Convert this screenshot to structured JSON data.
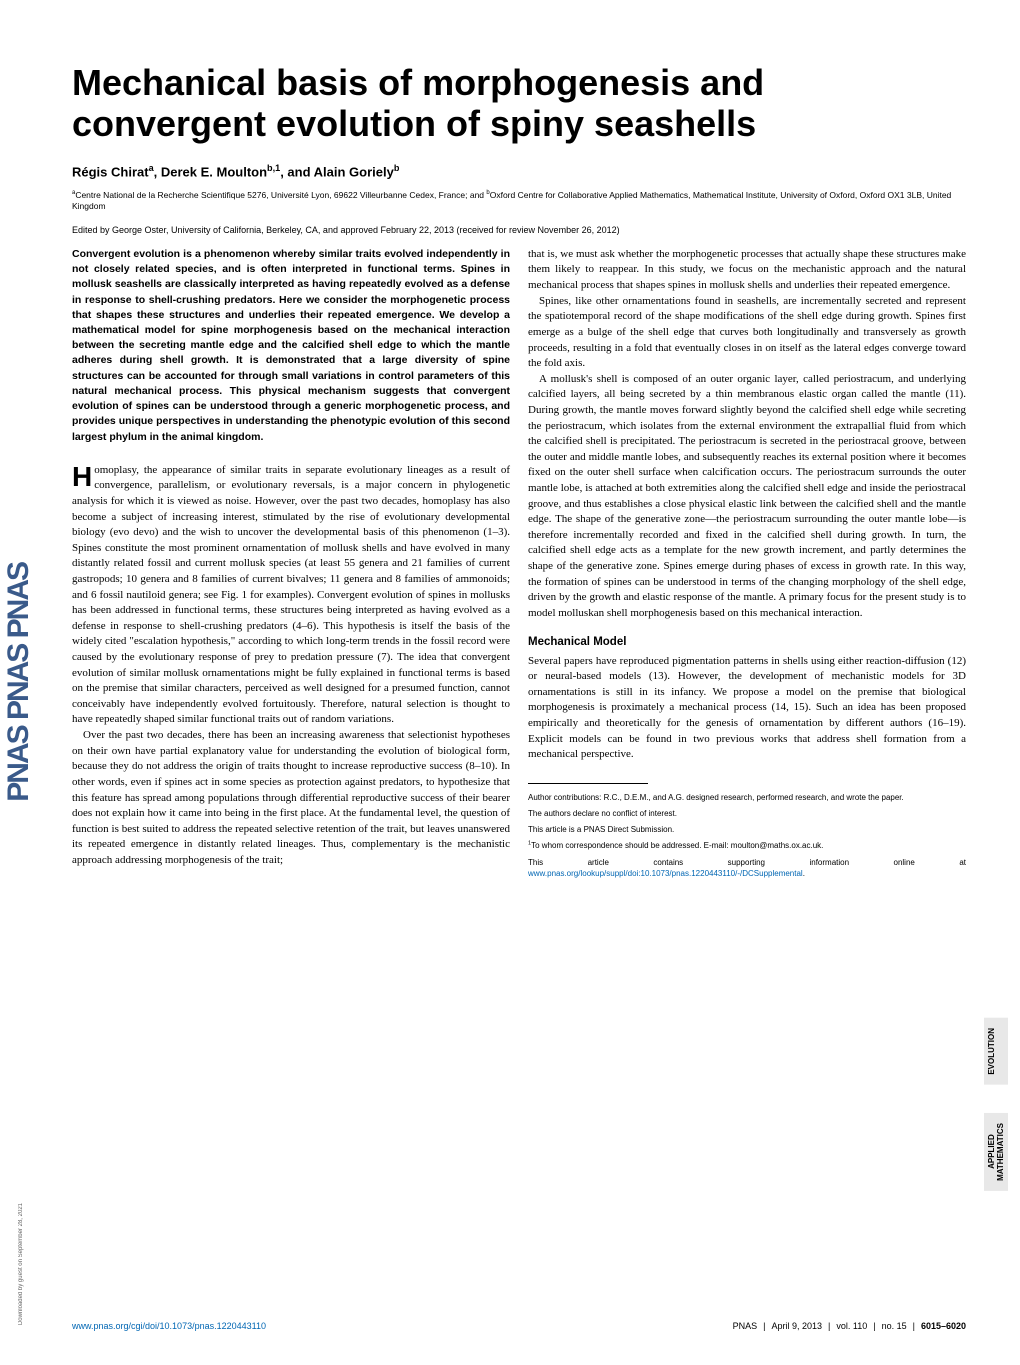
{
  "journal": {
    "logo_text": "PNAS  PNAS  PNAS",
    "logo_color": "#3a5a8a"
  },
  "download_note": "Downloaded by guest on September 28, 2021",
  "title": "Mechanical basis of morphogenesis and convergent evolution of spiny seashells",
  "authors_html": "Régis Chirat<sup>a</sup>, Derek E. Moulton<sup>b,1</sup>, and Alain Goriely<sup>b</sup>",
  "affiliations_html": "<sup>a</sup>Centre National de la Recherche Scientifique 5276, Université Lyon, 69622 Villeurbanne Cedex, France; and <sup>b</sup>Oxford Centre for Collaborative Applied Mathematics, Mathematical Institute, University of Oxford, Oxford OX1 3LB, United Kingdom",
  "edited": "Edited by George Oster, University of California, Berkeley, CA, and approved February 22, 2013 (received for review November 26, 2012)",
  "abstract": "Convergent evolution is a phenomenon whereby similar traits evolved independently in not closely related species, and is often interpreted in functional terms. Spines in mollusk seashells are classically interpreted as having repeatedly evolved as a defense in response to shell-crushing predators. Here we consider the morphogenetic process that shapes these structures and underlies their repeated emergence. We develop a mathematical model for spine morphogenesis based on the mechanical interaction between the secreting mantle edge and the calcified shell edge to which the mantle adheres during shell growth. It is demonstrated that a large diversity of spine structures can be accounted for through small variations in control parameters of this natural mechanical process. This physical mechanism suggests that convergent evolution of spines can be understood through a generic morphogenetic process, and provides unique perspectives in understanding the phenotypic evolution of this second largest phylum in the animal kingdom.",
  "body": {
    "col1": {
      "p1_dropcap": "H",
      "p1": "omoplasy, the appearance of similar traits in separate evolutionary lineages as a result of convergence, parallelism, or evolutionary reversals, is a major concern in phylogenetic analysis for which it is viewed as noise. However, over the past two decades, homoplasy has also become a subject of increasing interest, stimulated by the rise of evolutionary developmental biology (evo devo) and the wish to uncover the developmental basis of this phenomenon (1–3). Spines constitute the most prominent ornamentation of mollusk shells and have evolved in many distantly related fossil and current mollusk species (at least 55 genera and 21 families of current gastropods; 10 genera and 8 families of current bivalves; 11 genera and 8 families of ammonoids; and 6 fossil nautiloid genera; see Fig. 1 for examples). Convergent evolution of spines in mollusks has been addressed in functional terms, these structures being interpreted as having evolved as a defense in response to shell-crushing predators (4–6). This hypothesis is itself the basis of the widely cited \"escalation hypothesis,\" according to which long-term trends in the fossil record were caused by the evolutionary response of prey to predation pressure (7). The idea that convergent evolution of similar mollusk ornamentations might be fully explained in functional terms is based on the premise that similar characters, perceived as well designed for a presumed function, cannot conceivably have independently evolved fortuitously. Therefore, natural selection is thought to have repeatedly shaped similar functional traits out of random variations.",
      "p2": "Over the past two decades, there has been an increasing awareness that selectionist hypotheses on their own have partial explanatory value for understanding the evolution of biological form, because they do not address the origin of traits thought to increase reproductive success (8–10). In other words, even if spines act in some species as protection against predators, to hypothesize that this feature has spread among populations through differential reproductive success of their bearer does not explain how it came into being in the first place. At the fundamental level, the question of function is best suited to address the repeated selective retention of the trait, but leaves unanswered its repeated emergence in distantly related lineages. Thus, complementary is the mechanistic approach addressing morphogenesis of the trait;"
    },
    "col2": {
      "p1": "that is, we must ask whether the morphogenetic processes that actually shape these structures make them likely to reappear. In this study, we focus on the mechanistic approach and the natural mechanical process that shapes spines in mollusk shells and underlies their repeated emergence.",
      "p2": "Spines, like other ornamentations found in seashells, are incrementally secreted and represent the spatiotemporal record of the shape modifications of the shell edge during growth. Spines first emerge as a bulge of the shell edge that curves both longitudinally and transversely as growth proceeds, resulting in a fold that eventually closes in on itself as the lateral edges converge toward the fold axis.",
      "p3": "A mollusk's shell is composed of an outer organic layer, called periostracum, and underlying calcified layers, all being secreted by a thin membranous elastic organ called the mantle (11). During growth, the mantle moves forward slightly beyond the calcified shell edge while secreting the periostracum, which isolates from the external environment the extrapallial fluid from which the calcified shell is precipitated. The periostracum is secreted in the periostracal groove, between the outer and middle mantle lobes, and subsequently reaches its external position where it becomes fixed on the outer shell surface when calcification occurs. The periostracum surrounds the outer mantle lobe, is attached at both extremities along the calcified shell edge and inside the periostracal groove, and thus establishes a close physical elastic link between the calcified shell and the mantle edge. The shape of the generative zone—the periostracum surrounding the outer mantle lobe—is therefore incrementally recorded and fixed in the calcified shell during growth. In turn, the calcified shell edge acts as a template for the new growth increment, and partly determines the shape of the generative zone. Spines emerge during phases of excess in growth rate. In this way, the formation of spines can be understood in terms of the changing morphology of the shell edge, driven by the growth and elastic response of the mantle. A primary focus for the present study is to model molluskan shell morphogenesis based on this mechanical interaction.",
      "heading": "Mechanical Model",
      "p4": "Several papers have reproduced pigmentation patterns in shells using either reaction-diffusion (12) or neural-based models (13). However, the development of mechanistic models for 3D ornamentations is still in its infancy. We propose a model on the premise that biological morphogenesis is proximately a mechanical process (14, 15). Such an idea has been proposed empirically and theoretically for the genesis of ornamentation by different authors (16–19). Explicit models can be found in two previous works that address shell formation from a mechanical perspective."
    }
  },
  "footnotes": {
    "f1": "Author contributions: R.C., D.E.M., and A.G. designed research, performed research, and wrote the paper.",
    "f2": "The authors declare no conflict of interest.",
    "f3": "This article is a PNAS Direct Submission.",
    "f4_html": "<sup>1</sup>To whom correspondence should be addressed. E-mail: moulton@maths.ox.ac.uk.",
    "f5_prefix": "This article contains supporting information online at ",
    "f5_link": "www.pnas.org/lookup/suppl/doi:10.1073/pnas.1220443110/-/DCSupplemental",
    "f5_suffix": "."
  },
  "footer": {
    "left_link": "www.pnas.org/cgi/doi/10.1073/pnas.1220443110",
    "right": {
      "journal": "PNAS",
      "date": "April 9, 2013",
      "vol": "vol. 110",
      "no": "no. 15",
      "pages": "6015–6020"
    }
  },
  "side_labels": {
    "label1": "EVOLUTION",
    "label2_line1": "APPLIED",
    "label2_line2": "MATHEMATICS"
  },
  "colors": {
    "link": "#0066b3",
    "sidebar_gray": "#e8e8e8"
  },
  "fonts": {
    "title_size_pt": 36,
    "body_size_pt": 11,
    "abstract_size_pt": 10.5,
    "footnote_size_pt": 8
  }
}
